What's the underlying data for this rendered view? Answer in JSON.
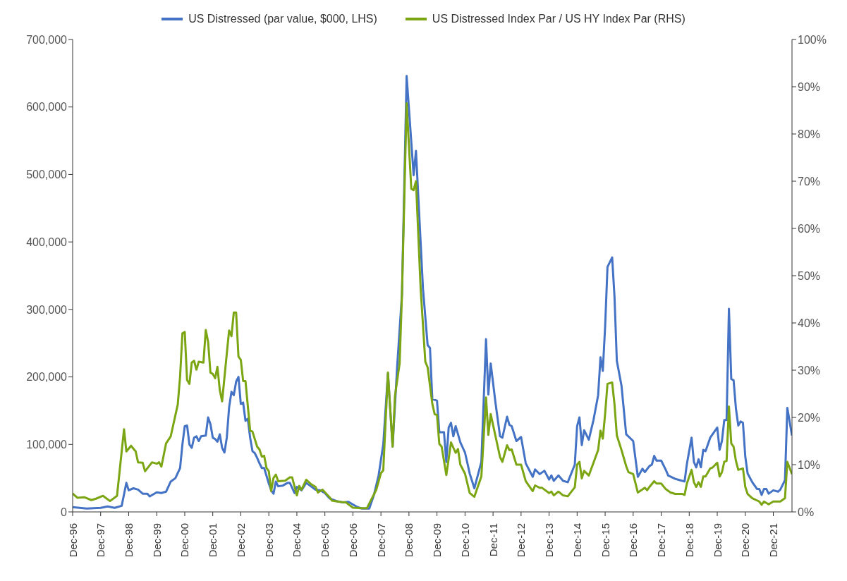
{
  "chart_data": {
    "type": "line",
    "legend": "top",
    "grid": false,
    "marker": "none",
    "line_style": "solid",
    "xlim": [
      "1996-12",
      "2022-08"
    ],
    "xticks": [
      {
        "value": "1996-12",
        "label": "Dec-96"
      },
      {
        "value": "1997-12",
        "label": "Dec-97"
      },
      {
        "value": "1998-12",
        "label": "Dec-98"
      },
      {
        "value": "1999-12",
        "label": "Dec-99"
      },
      {
        "value": "2000-12",
        "label": "Dec-00"
      },
      {
        "value": "2001-12",
        "label": "Dec-01"
      },
      {
        "value": "2002-12",
        "label": "Dec-02"
      },
      {
        "value": "2003-12",
        "label": "Dec-03"
      },
      {
        "value": "2004-12",
        "label": "Dec-04"
      },
      {
        "value": "2005-12",
        "label": "Dec-05"
      },
      {
        "value": "2006-12",
        "label": "Dec-06"
      },
      {
        "value": "2007-12",
        "label": "Dec-07"
      },
      {
        "value": "2008-12",
        "label": "Dec-08"
      },
      {
        "value": "2009-12",
        "label": "Dec-09"
      },
      {
        "value": "2010-12",
        "label": "Dec-10"
      },
      {
        "value": "2011-12",
        "label": "Dec-11"
      },
      {
        "value": "2012-12",
        "label": "Dec-12"
      },
      {
        "value": "2013-12",
        "label": "Dec-13"
      },
      {
        "value": "2014-12",
        "label": "Dec-14"
      },
      {
        "value": "2015-12",
        "label": "Dec-15"
      },
      {
        "value": "2016-12",
        "label": "Dec-16"
      },
      {
        "value": "2017-12",
        "label": "Dec-17"
      },
      {
        "value": "2018-12",
        "label": "Dec-18"
      },
      {
        "value": "2019-12",
        "label": "Dec-19"
      },
      {
        "value": "2020-12",
        "label": "Dec-20"
      },
      {
        "value": "2021-12",
        "label": "Dec-21"
      }
    ],
    "ylim": [
      0,
      700000
    ],
    "yticks": [
      0,
      {
        "value": 100000,
        "label": "100,000"
      },
      {
        "value": 200000,
        "label": "200,000"
      },
      {
        "value": 300000,
        "label": "300,000"
      },
      {
        "value": 400000,
        "label": "400,000"
      },
      {
        "value": 500000,
        "label": "500,000"
      },
      {
        "value": 600000,
        "label": "600,000"
      },
      {
        "value": 700000,
        "label": "700,000"
      }
    ],
    "y2lim": [
      0,
      100
    ],
    "y2ticks": [
      {
        "value": 0,
        "label": "0%"
      },
      {
        "value": 10,
        "label": "10%"
      },
      {
        "value": 20,
        "label": "20%"
      },
      {
        "value": 30,
        "label": "30%"
      },
      {
        "value": 40,
        "label": "40%"
      },
      {
        "value": 50,
        "label": "50%"
      },
      {
        "value": 60,
        "label": "60%"
      },
      {
        "value": 70,
        "label": "70%"
      },
      {
        "value": 80,
        "label": "80%"
      },
      {
        "value": 90,
        "label": "90%"
      },
      {
        "value": 100,
        "label": "100%"
      }
    ],
    "series": [
      {
        "name": "US Distressed (par value, $000, LHS)",
        "color": "#4472c4",
        "x": [
          "1996-12",
          "1997-06",
          "1997-12",
          "1998-03",
          "1998-06",
          "1998-09",
          "1998-11",
          "1998-12",
          "1999-02",
          "1999-04",
          "1999-06",
          "1999-08",
          "1999-09",
          "1999-12",
          "2000-02",
          "2000-04",
          "2000-06",
          "2000-08",
          "2000-10",
          "2000-11",
          "2000-12",
          "2001-01",
          "2001-02",
          "2001-03",
          "2001-04",
          "2001-05",
          "2001-06",
          "2001-07",
          "2001-09",
          "2001-10",
          "2001-11",
          "2001-12",
          "2002-01",
          "2002-02",
          "2002-03",
          "2002-04",
          "2002-05",
          "2002-06",
          "2002-07",
          "2002-08",
          "2002-09",
          "2002-10",
          "2002-11",
          "2002-12",
          "2003-01",
          "2003-02",
          "2003-03",
          "2003-04",
          "2003-05",
          "2003-06",
          "2003-07",
          "2003-08",
          "2003-09",
          "2003-10",
          "2003-12",
          "2004-01",
          "2004-02",
          "2004-03",
          "2004-04",
          "2004-06",
          "2004-08",
          "2004-09",
          "2004-11",
          "2004-12",
          "2005-02",
          "2005-04",
          "2005-06",
          "2005-08",
          "2005-10",
          "2005-12",
          "2006-02",
          "2006-05",
          "2006-08",
          "2006-10",
          "2006-12",
          "2007-02",
          "2007-04",
          "2007-07",
          "2007-09",
          "2007-11",
          "2008-01",
          "2008-03",
          "2008-05",
          "2008-07",
          "2008-09",
          "2008-11",
          "2009-02",
          "2009-03",
          "2009-06",
          "2009-08",
          "2009-09",
          "2009-10",
          "2009-12",
          "2010-01",
          "2010-03",
          "2010-04",
          "2010-05",
          "2010-06",
          "2010-07",
          "2010-08",
          "2010-10",
          "2010-12",
          "2011-02",
          "2011-04",
          "2011-07",
          "2011-09",
          "2011-10",
          "2011-11",
          "2012-01",
          "2012-03",
          "2012-04",
          "2012-06",
          "2012-07",
          "2012-08",
          "2012-10",
          "2012-12",
          "2013-02",
          "2013-05",
          "2013-06",
          "2013-08",
          "2013-10",
          "2013-12",
          "2014-01",
          "2014-02",
          "2014-04",
          "2014-06",
          "2014-08",
          "2014-11",
          "2014-12",
          "2015-01",
          "2015-02",
          "2015-03",
          "2015-05",
          "2015-07",
          "2015-09",
          "2015-10",
          "2015-11",
          "2015-12",
          "2016-01",
          "2016-03",
          "2016-04",
          "2016-05",
          "2016-07",
          "2016-09",
          "2016-12",
          "2017-02",
          "2017-04",
          "2017-05",
          "2017-07",
          "2017-08",
          "2017-09",
          "2017-10",
          "2017-12",
          "2018-02",
          "2018-03",
          "2018-06",
          "2018-08",
          "2018-10",
          "2018-11",
          "2019-01",
          "2019-02",
          "2019-03",
          "2019-04",
          "2019-05",
          "2019-06",
          "2019-07",
          "2019-09",
          "2019-10",
          "2019-12",
          "2020-01",
          "2020-02",
          "2020-03",
          "2020-04",
          "2020-05",
          "2020-06",
          "2020-07",
          "2020-08",
          "2020-09",
          "2020-10",
          "2020-11",
          "2020-12",
          "2021-01",
          "2021-03",
          "2021-05",
          "2021-06",
          "2021-07",
          "2021-08",
          "2021-09",
          "2021-10",
          "2021-12",
          "2022-02",
          "2022-03",
          "2022-05",
          "2022-06",
          "2022-08"
        ],
        "values": [
          7000,
          5000,
          6000,
          8000,
          6000,
          9000,
          43000,
          32000,
          35000,
          33000,
          27000,
          27000,
          23000,
          29000,
          28000,
          30000,
          45000,
          50000,
          65000,
          100000,
          127000,
          128000,
          100000,
          95000,
          110000,
          112000,
          105000,
          112000,
          113000,
          140000,
          130000,
          110000,
          108000,
          104000,
          115000,
          95000,
          88000,
          110000,
          155000,
          178000,
          173000,
          193000,
          200000,
          160000,
          162000,
          135000,
          138000,
          110000,
          90000,
          87000,
          80000,
          72000,
          65000,
          65000,
          42000,
          32000,
          27000,
          45000,
          38000,
          39000,
          43000,
          43000,
          28000,
          37000,
          32000,
          43000,
          38000,
          33000,
          32000,
          28000,
          20000,
          16000,
          14000,
          15000,
          11000,
          7000,
          5000,
          5000,
          25000,
          54000,
          100000,
          205000,
          97000,
          218000,
          322000,
          646000,
          499000,
          535000,
          331000,
          247000,
          243000,
          167000,
          165000,
          118000,
          118000,
          74000,
          125000,
          132000,
          112000,
          127000,
          103000,
          88000,
          57000,
          35000,
          74000,
          256000,
          174000,
          220000,
          163000,
          112000,
          110000,
          141000,
          129000,
          127000,
          105000,
          111000,
          72000,
          52000,
          63000,
          56000,
          61000,
          48000,
          54000,
          46000,
          54000,
          46000,
          44000,
          70000,
          127000,
          140000,
          99000,
          121000,
          107000,
          136000,
          173000,
          229000,
          209000,
          275000,
          363000,
          377000,
          319000,
          224000,
          187000,
          115000,
          105000,
          52000,
          64000,
          59000,
          68000,
          70000,
          83000,
          76000,
          76000,
          62000,
          54000,
          49000,
          47000,
          45000,
          71000,
          110000,
          74000,
          66000,
          78000,
          66000,
          92000,
          90000,
          110000,
          115000,
          125000,
          92000,
          105000,
          136000,
          136000,
          301000,
          197000,
          195000,
          153000,
          128000,
          134000,
          132000,
          82000,
          57000,
          44000,
          34000,
          34000,
          25000,
          34000,
          34000,
          27000,
          32000,
          30000,
          33000,
          47000,
          154000,
          113000
        ]
      },
      {
        "name": "US Distressed Index Par / US HY Index Par (RHS)",
        "color": "#7ba512",
        "axis": "y2",
        "x": [
          "1996-12",
          "1997-02",
          "1997-05",
          "1997-08",
          "1997-10",
          "1998-01",
          "1998-04",
          "1998-07",
          "1998-10",
          "1998-11",
          "1999-01",
          "1999-03",
          "1999-04",
          "1999-06",
          "1999-07",
          "1999-10",
          "1999-12",
          "2000-01",
          "2000-02",
          "2000-04",
          "2000-06",
          "2000-09",
          "2000-10",
          "2000-11",
          "2000-12",
          "2001-01",
          "2001-02",
          "2001-03",
          "2001-04",
          "2001-05",
          "2001-06",
          "2001-08",
          "2001-09",
          "2001-10",
          "2001-11",
          "2001-12",
          "2002-01",
          "2002-02",
          "2002-03",
          "2002-04",
          "2002-06",
          "2002-07",
          "2002-08",
          "2002-09",
          "2002-10",
          "2002-11",
          "2002-12",
          "2003-01",
          "2003-02",
          "2003-04",
          "2003-05",
          "2003-07",
          "2003-08",
          "2003-09",
          "2003-10",
          "2003-11",
          "2003-12",
          "2004-01",
          "2004-02",
          "2004-03",
          "2004-04",
          "2004-07",
          "2004-09",
          "2004-10",
          "2004-12",
          "2005-01",
          "2005-02",
          "2005-04",
          "2005-06",
          "2005-08",
          "2005-09",
          "2005-11",
          "2006-02",
          "2006-03",
          "2006-07",
          "2006-09",
          "2006-12",
          "2007-03",
          "2007-06",
          "2007-09",
          "2007-10",
          "2007-12",
          "2008-01",
          "2008-03",
          "2008-05",
          "2008-06",
          "2008-08",
          "2008-09",
          "2008-11",
          "2009-01",
          "2009-02",
          "2009-03",
          "2009-05",
          "2009-07",
          "2009-08",
          "2009-10",
          "2009-11",
          "2009-12",
          "2010-01",
          "2010-02",
          "2010-04",
          "2010-06",
          "2010-08",
          "2010-09",
          "2010-10",
          "2010-12",
          "2011-02",
          "2011-04",
          "2011-07",
          "2011-09",
          "2011-10",
          "2011-11",
          "2012-03",
          "2012-04",
          "2012-06",
          "2012-07",
          "2012-08",
          "2012-10",
          "2012-12",
          "2013-02",
          "2013-05",
          "2013-06",
          "2013-08",
          "2013-09",
          "2013-12",
          "2014-01",
          "2014-02",
          "2014-04",
          "2014-06",
          "2014-08",
          "2014-11",
          "2014-12",
          "2015-01",
          "2015-02",
          "2015-03",
          "2015-05",
          "2015-09",
          "2015-10",
          "2015-11",
          "2015-12",
          "2016-01",
          "2016-03",
          "2016-04",
          "2016-05",
          "2016-07",
          "2016-09",
          "2016-10",
          "2016-12",
          "2017-02",
          "2017-05",
          "2017-06",
          "2017-07",
          "2017-09",
          "2017-10",
          "2017-12",
          "2018-02",
          "2018-04",
          "2018-06",
          "2018-09",
          "2018-10",
          "2018-11",
          "2019-01",
          "2019-02",
          "2019-03",
          "2019-04",
          "2019-05",
          "2019-06",
          "2019-07",
          "2019-09",
          "2019-10",
          "2019-12",
          "2020-01",
          "2020-02",
          "2020-03",
          "2020-04",
          "2020-05",
          "2020-06",
          "2020-07",
          "2020-08",
          "2020-09",
          "2020-11",
          "2020-12",
          "2021-01",
          "2021-03",
          "2021-06",
          "2021-07",
          "2021-08",
          "2021-10",
          "2021-12",
          "2022-03",
          "2022-05",
          "2022-06",
          "2022-08"
        ],
        "values": [
          3.9,
          3.0,
          3.1,
          2.5,
          2.8,
          3.4,
          2.3,
          3.4,
          17.5,
          12.8,
          14.0,
          12.8,
          10.5,
          10.4,
          8.6,
          10.5,
          10.2,
          10.5,
          9.6,
          14.5,
          16.0,
          22.7,
          28.6,
          37.8,
          38.1,
          27.9,
          27.1,
          31.6,
          32.0,
          30.1,
          31.8,
          31.6,
          38.5,
          36.0,
          29.5,
          29.2,
          28.3,
          30.7,
          25.8,
          23.4,
          33.5,
          38.4,
          37.2,
          42.2,
          42.2,
          32.9,
          32.2,
          27.7,
          27.7,
          17.2,
          17.0,
          13.8,
          13.2,
          11.7,
          11.9,
          9.3,
          8.6,
          4.4,
          7.2,
          7.9,
          6.5,
          6.6,
          7.3,
          7.3,
          3.5,
          5.5,
          4.7,
          6.8,
          5.9,
          5.3,
          4.1,
          4.7,
          3.1,
          2.4,
          2.1,
          2.0,
          0.9,
          0.8,
          0.8,
          3.7,
          4.7,
          8.2,
          8.8,
          29.5,
          13.8,
          24.5,
          31.4,
          46.0,
          86.5,
          68.4,
          68.1,
          70.0,
          47.3,
          31.8,
          30.6,
          22.9,
          20.7,
          20.5,
          14.4,
          13.8,
          7.8,
          14.7,
          12.5,
          13.3,
          10.0,
          8.1,
          4.0,
          3.2,
          7.5,
          24.2,
          16.3,
          20.7,
          11.6,
          10.6,
          14.1,
          13.1,
          13.2,
          10.0,
          10.0,
          6.5,
          4.4,
          5.6,
          5.1,
          5.1,
          4.0,
          4.3,
          3.5,
          4.3,
          3.5,
          3.3,
          5.2,
          10.0,
          10.6,
          7.1,
          8.7,
          7.7,
          13.1,
          17.2,
          15.5,
          20.8,
          27.1,
          27.4,
          22.8,
          16.2,
          13.1,
          9.7,
          8.4,
          8.0,
          4.1,
          5.1,
          4.6,
          5.3,
          6.5,
          6.0,
          6.0,
          4.8,
          4.1,
          3.8,
          3.8,
          3.6,
          6.0,
          8.9,
          6.3,
          5.3,
          6.3,
          5.3,
          7.5,
          7.5,
          9.2,
          9.4,
          10.4,
          7.5,
          8.4,
          10.6,
          10.8,
          22.3,
          14.5,
          13.8,
          10.8,
          8.9,
          9.2,
          5.3,
          3.8,
          2.9,
          2.2,
          1.5,
          2.2,
          1.6,
          2.2,
          2.2,
          2.9,
          10.6,
          8.0
        ]
      }
    ]
  }
}
